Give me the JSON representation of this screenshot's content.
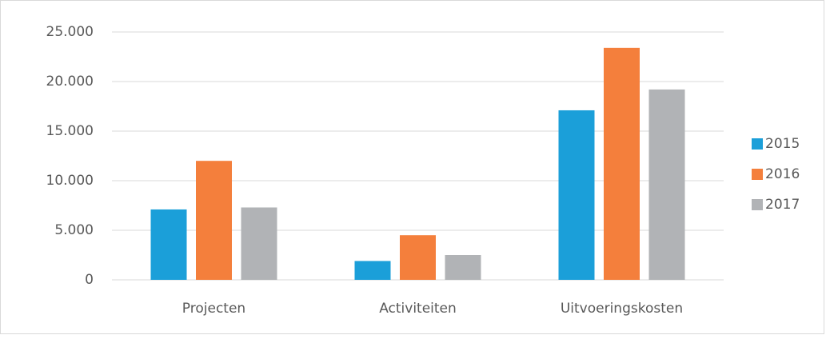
{
  "chart_data": {
    "type": "bar",
    "categories": [
      "Projecten",
      "Activiteiten",
      "Uitvoeringskosten"
    ],
    "series": [
      {
        "name": "2015",
        "color": "#1b9fd9",
        "values": [
          7100,
          1900,
          17100
        ]
      },
      {
        "name": "2016",
        "color": "#f47f3c",
        "values": [
          12000,
          4500,
          23400
        ]
      },
      {
        "name": "2017",
        "color": "#b1b3b6",
        "values": [
          7300,
          2500,
          19200
        ]
      }
    ],
    "ylim": [
      0,
      25000
    ],
    "yticks": [
      0,
      {
        "value": 5000,
        "label": "5.000"
      },
      {
        "value": 10000,
        "label": "10.000"
      },
      {
        "value": 15000,
        "label": "15.000"
      },
      {
        "value": 20000,
        "label": "20.000"
      },
      {
        "value": 25000,
        "label": "25.000"
      }
    ],
    "grid": true,
    "legend": "right"
  }
}
